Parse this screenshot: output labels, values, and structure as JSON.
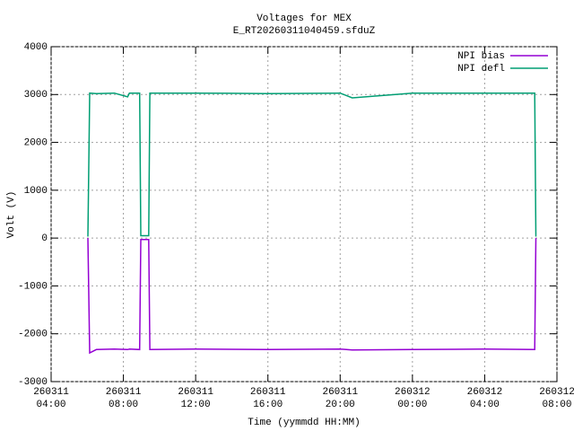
{
  "chart_data": {
    "type": "line",
    "title": "Voltages for MEX",
    "subtitle": "E_RT20260311040459.sfduZ",
    "x_label": "Time (yymmdd HH:MM)",
    "y_label": "Volt (V)",
    "x": [
      "260311 06:02",
      "260311 06:08",
      "260311 06:30",
      "260311 07:30",
      "260311 08:14",
      "260311 08:20",
      "260311 08:54",
      "260311 08:58",
      "260311 09:24",
      "260311 09:28",
      "260311 12:00",
      "260311 16:00",
      "260311 20:00",
      "260311 20:40",
      "260312 00:00",
      "260312 04:00",
      "260312 06:46",
      "260312 06:50"
    ],
    "series": [
      {
        "name": "NPI bias",
        "color": "#9400d3",
        "values": [
          0,
          -2400,
          -2330,
          -2320,
          -2330,
          -2320,
          -2330,
          -30,
          -30,
          -2330,
          -2320,
          -2330,
          -2320,
          -2340,
          -2330,
          -2320,
          -2330,
          0
        ]
      },
      {
        "name": "NPI defl",
        "color": "#009e73",
        "values": [
          30,
          3030,
          3020,
          3030,
          2950,
          3030,
          3030,
          50,
          50,
          3030,
          3030,
          3020,
          3030,
          2930,
          3030,
          3030,
          3030,
          30
        ]
      }
    ],
    "xlim": [
      "260311 04:00",
      "260312 08:00"
    ],
    "xticks": [
      "260311 04:00",
      "260311 08:00",
      "260311 12:00",
      "260311 16:00",
      "260311 20:00",
      "260312 00:00",
      "260312 04:00",
      "260312 08:00"
    ],
    "ylim": [
      -3000,
      4000
    ],
    "yticks": [
      -3000,
      -2000,
      -1000,
      0,
      1000,
      2000,
      3000,
      4000
    ],
    "grid": true,
    "legend": "top-right"
  }
}
